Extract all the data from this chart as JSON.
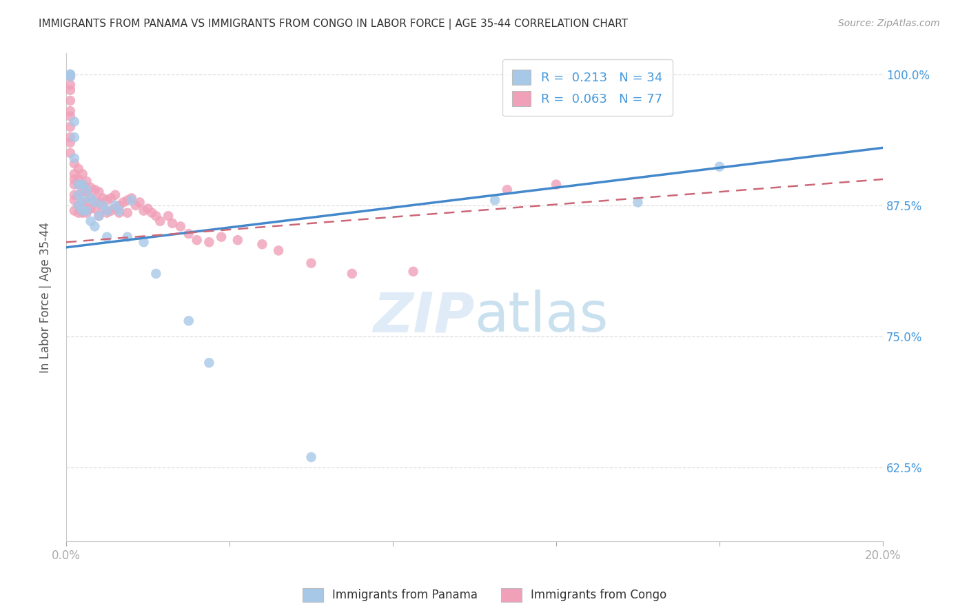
{
  "title": "IMMIGRANTS FROM PANAMA VS IMMIGRANTS FROM CONGO IN LABOR FORCE | AGE 35-44 CORRELATION CHART",
  "source": "Source: ZipAtlas.com",
  "ylabel": "In Labor Force | Age 35-44",
  "xlim": [
    0.0,
    0.2
  ],
  "ylim": [
    0.555,
    1.02
  ],
  "xticks": [
    0.0,
    0.04,
    0.08,
    0.12,
    0.16,
    0.2
  ],
  "xticklabels": [
    "0.0%",
    "",
    "",
    "",
    "",
    "20.0%"
  ],
  "yticks": [
    0.625,
    0.75,
    0.875,
    1.0
  ],
  "yticklabels": [
    "62.5%",
    "75.0%",
    "87.5%",
    "100.0%"
  ],
  "blue_R": 0.213,
  "blue_N": 34,
  "pink_R": 0.063,
  "pink_N": 77,
  "blue_label": "Immigrants from Panama",
  "pink_label": "Immigrants from Congo",
  "background_color": "#ffffff",
  "blue_color": "#a8c8e8",
  "pink_color": "#f0a0b8",
  "blue_line_color": "#4488cc",
  "pink_line_color": "#cc6677",
  "title_color": "#333333",
  "axis_label_color": "#4499dd",
  "grid_color": "#dddddd",
  "panama_x": [
    0.001,
    0.001,
    0.001,
    0.002,
    0.002,
    0.002,
    0.003,
    0.003,
    0.003,
    0.004,
    0.004,
    0.004,
    0.005,
    0.005,
    0.006,
    0.006,
    0.007,
    0.007,
    0.008,
    0.009,
    0.01,
    0.01,
    0.012,
    0.013,
    0.015,
    0.016,
    0.019,
    0.022,
    0.03,
    0.035,
    0.06,
    0.105,
    0.14,
    0.16
  ],
  "panama_y": [
    1.0,
    1.0,
    0.998,
    0.955,
    0.94,
    0.92,
    0.895,
    0.885,
    0.875,
    0.895,
    0.88,
    0.87,
    0.89,
    0.87,
    0.882,
    0.86,
    0.878,
    0.855,
    0.865,
    0.875,
    0.87,
    0.845,
    0.875,
    0.87,
    0.845,
    0.88,
    0.84,
    0.81,
    0.765,
    0.725,
    0.635,
    0.88,
    0.878,
    0.912
  ],
  "congo_x": [
    0.001,
    0.001,
    0.001,
    0.001,
    0.001,
    0.001,
    0.001,
    0.001,
    0.001,
    0.001,
    0.002,
    0.002,
    0.002,
    0.002,
    0.002,
    0.002,
    0.002,
    0.003,
    0.003,
    0.003,
    0.003,
    0.003,
    0.003,
    0.004,
    0.004,
    0.004,
    0.004,
    0.004,
    0.005,
    0.005,
    0.005,
    0.005,
    0.006,
    0.006,
    0.006,
    0.007,
    0.007,
    0.007,
    0.008,
    0.008,
    0.008,
    0.009,
    0.009,
    0.01,
    0.01,
    0.011,
    0.011,
    0.012,
    0.012,
    0.013,
    0.013,
    0.014,
    0.015,
    0.015,
    0.016,
    0.017,
    0.018,
    0.019,
    0.02,
    0.021,
    0.022,
    0.023,
    0.025,
    0.026,
    0.028,
    0.03,
    0.032,
    0.035,
    0.038,
    0.042,
    0.048,
    0.052,
    0.06,
    0.07,
    0.085,
    0.108,
    0.12
  ],
  "congo_y": [
    0.998,
    0.99,
    0.985,
    0.975,
    0.965,
    0.96,
    0.95,
    0.94,
    0.935,
    0.925,
    0.915,
    0.905,
    0.9,
    0.895,
    0.885,
    0.88,
    0.87,
    0.91,
    0.9,
    0.895,
    0.885,
    0.875,
    0.868,
    0.905,
    0.895,
    0.888,
    0.878,
    0.868,
    0.898,
    0.888,
    0.878,
    0.868,
    0.892,
    0.882,
    0.872,
    0.89,
    0.88,
    0.872,
    0.888,
    0.878,
    0.865,
    0.882,
    0.872,
    0.88,
    0.868,
    0.882,
    0.87,
    0.885,
    0.872,
    0.875,
    0.868,
    0.878,
    0.88,
    0.868,
    0.882,
    0.875,
    0.878,
    0.87,
    0.872,
    0.868,
    0.865,
    0.86,
    0.865,
    0.858,
    0.855,
    0.848,
    0.842,
    0.84,
    0.845,
    0.842,
    0.838,
    0.832,
    0.82,
    0.81,
    0.812,
    0.89,
    0.895
  ],
  "blue_trend_x0": 0.0,
  "blue_trend_y0": 0.835,
  "blue_trend_x1": 0.2,
  "blue_trend_y1": 0.93,
  "pink_trend_x0": 0.0,
  "pink_trend_y0": 0.84,
  "pink_trend_x1": 0.2,
  "pink_trend_y1": 0.9
}
